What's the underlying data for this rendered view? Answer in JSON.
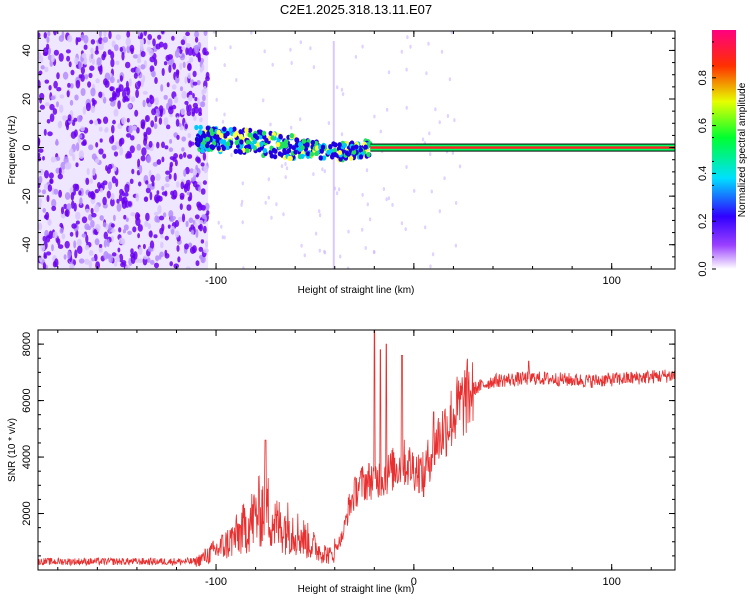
{
  "title": "C2E1.2025.318.13.11.E07",
  "chart_data": [
    {
      "type": "heatmap",
      "name": "spectrogram",
      "xlabel": "Height of straight line (km)",
      "ylabel": "Frequency (Hz)",
      "xlim": [
        -190,
        132
      ],
      "ylim": [
        -50,
        48
      ],
      "xticks": [
        -100,
        0,
        100
      ],
      "xtick_labels": [
        "-100",
        "",
        "100"
      ],
      "yticks": [
        -40,
        -20,
        0,
        20,
        40
      ],
      "ytick_labels": [
        "-40",
        "-20",
        "0",
        "20",
        "40"
      ],
      "noise_region_x": [
        -190,
        -104
      ],
      "dot_color": "#6a00f0",
      "line_color_outer": "#00ff66",
      "line_color_inner": "#ff2222",
      "signal_track": [
        {
          "x": -110,
          "y": 4
        },
        {
          "x": -100,
          "y": 3
        },
        {
          "x": -90,
          "y": 3
        },
        {
          "x": -80,
          "y": 2
        },
        {
          "x": -70,
          "y": 1
        },
        {
          "x": -60,
          "y": 0
        },
        {
          "x": -50,
          "y": -1
        },
        {
          "x": -40,
          "y": -2
        },
        {
          "x": -30,
          "y": -1
        },
        {
          "x": -20,
          "y": 0
        },
        {
          "x": 0,
          "y": 0
        },
        {
          "x": 132,
          "y": 0
        }
      ],
      "colorbar": {
        "label": "Normalized spectral amplitude",
        "range": [
          0,
          1
        ],
        "ticks": [
          0.0,
          0.2,
          0.4,
          0.6,
          0.8
        ],
        "tick_labels": [
          "0.0",
          "0.2",
          "0.4",
          "0.6",
          "0.8"
        ],
        "colors": [
          "#ffffff",
          "#8000ff",
          "#0000ff",
          "#00ffff",
          "#00ff00",
          "#ffff00",
          "#ff0000",
          "#ff0080"
        ]
      }
    },
    {
      "type": "line",
      "name": "snr",
      "xlabel": "Height of straight line (km)",
      "ylabel": "SNR (10 * v/v)",
      "xlim": [
        -190,
        132
      ],
      "ylim": [
        0,
        8500
      ],
      "xticks": [
        -100,
        0,
        100
      ],
      "xtick_labels": [
        "-100",
        "0",
        "100"
      ],
      "yticks": [
        2000,
        4000,
        6000,
        8000
      ],
      "ytick_labels": [
        "2000",
        "4000",
        "6000",
        "8000"
      ],
      "line_color": "#e83030",
      "envelope": [
        {
          "x": -190,
          "y": 300
        },
        {
          "x": -110,
          "y": 300
        },
        {
          "x": -105,
          "y": 500
        },
        {
          "x": -95,
          "y": 900
        },
        {
          "x": -88,
          "y": 1300
        },
        {
          "x": -80,
          "y": 1900
        },
        {
          "x": -75,
          "y": 2300
        },
        {
          "x": -70,
          "y": 1600
        },
        {
          "x": -62,
          "y": 1500
        },
        {
          "x": -55,
          "y": 1100
        },
        {
          "x": -48,
          "y": 700
        },
        {
          "x": -42,
          "y": 500
        },
        {
          "x": -36,
          "y": 1200
        },
        {
          "x": -33,
          "y": 2200
        },
        {
          "x": -28,
          "y": 3000
        },
        {
          "x": -22,
          "y": 3200
        },
        {
          "x": -15,
          "y": 3300
        },
        {
          "x": -10,
          "y": 3600
        },
        {
          "x": -5,
          "y": 3800
        },
        {
          "x": 5,
          "y": 3400
        },
        {
          "x": 10,
          "y": 4400
        },
        {
          "x": 20,
          "y": 5500
        },
        {
          "x": 30,
          "y": 6400
        },
        {
          "x": 40,
          "y": 6700
        },
        {
          "x": 60,
          "y": 6800
        },
        {
          "x": 90,
          "y": 6700
        },
        {
          "x": 132,
          "y": 6900
        }
      ],
      "spikes": [
        {
          "x": -75,
          "y": 4600
        },
        {
          "x": -20,
          "y": 8500
        },
        {
          "x": -17,
          "y": 7800
        },
        {
          "x": -14,
          "y": 8000
        },
        {
          "x": -6,
          "y": 7600
        },
        {
          "x": 5,
          "y": 2600
        },
        {
          "x": 10,
          "y": 5600
        },
        {
          "x": 58,
          "y": 7400
        }
      ]
    }
  ]
}
